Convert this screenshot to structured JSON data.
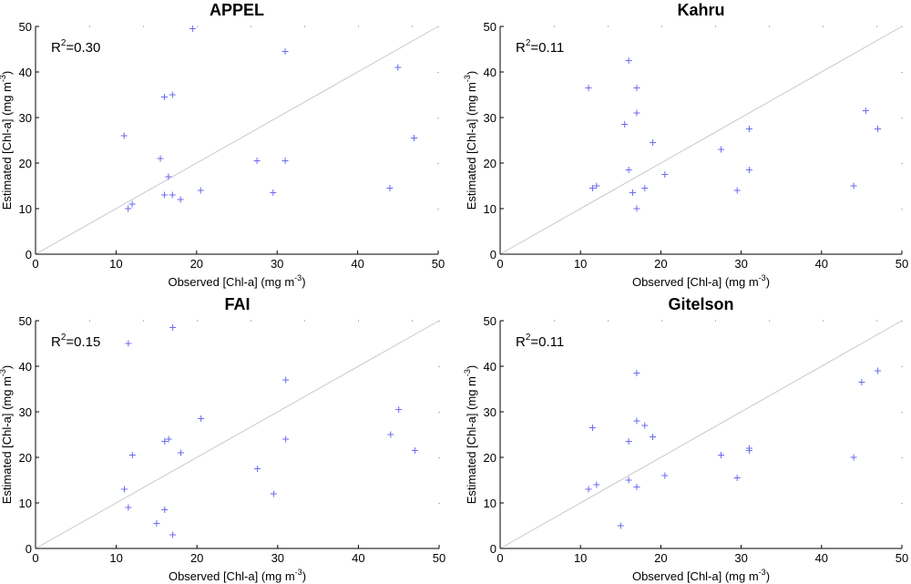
{
  "colors": {
    "axis": "#000000",
    "diagonal": "#c8c8d2",
    "marker": "#6a6af0",
    "dotted_tick": "#777777"
  },
  "chart_data": [
    {
      "type": "scatter",
      "title": "APPEL",
      "r2_prefix": "R",
      "r2_sup": "2",
      "r2_value": "=0.30",
      "xlabel": "Observed [Chl-a] (mg m",
      "ylabel": "Estimated [Chl-a] (mg m",
      "unit_sup": "-3",
      "unit_close": ")",
      "xlim": [
        0,
        50
      ],
      "ylim": [
        0,
        50
      ],
      "xticks": [
        "0",
        "10",
        "20",
        "30",
        "40",
        "50"
      ],
      "yticks": [
        "0",
        "10",
        "20",
        "30",
        "40",
        "50"
      ],
      "reference_line": "1:1",
      "points": [
        [
          11,
          26
        ],
        [
          11.5,
          10
        ],
        [
          12,
          11
        ],
        [
          15.5,
          21
        ],
        [
          16,
          34.5
        ],
        [
          16.5,
          17
        ],
        [
          17,
          35
        ],
        [
          16,
          13
        ],
        [
          17,
          13
        ],
        [
          18,
          12
        ],
        [
          19.5,
          49.5
        ],
        [
          20.5,
          14
        ],
        [
          27.5,
          20.5
        ],
        [
          29.5,
          13.5
        ],
        [
          31,
          20.5
        ],
        [
          31,
          44.5
        ],
        [
          44,
          14.5
        ],
        [
          45,
          41
        ],
        [
          47,
          25.5
        ]
      ]
    },
    {
      "type": "scatter",
      "title": "Kahru",
      "r2_prefix": "R",
      "r2_sup": "2",
      "r2_value": "=0.11",
      "xlabel": "Observed [Chl-a] (mg m",
      "ylabel": "Estimated [Chl-a] (mg m",
      "unit_sup": "-3",
      "unit_close": ")",
      "xlim": [
        0,
        50
      ],
      "ylim": [
        0,
        50
      ],
      "xticks": [
        "0",
        "10",
        "20",
        "30",
        "40",
        "50"
      ],
      "yticks": [
        "0",
        "10",
        "20",
        "30",
        "40",
        "50"
      ],
      "reference_line": "1:1",
      "points": [
        [
          11,
          36.5
        ],
        [
          11.5,
          14.5
        ],
        [
          12,
          15
        ],
        [
          15.5,
          28.5
        ],
        [
          16,
          18.5
        ],
        [
          16,
          42.5
        ],
        [
          16.5,
          13.5
        ],
        [
          17,
          36.5
        ],
        [
          17,
          31
        ],
        [
          17,
          10
        ],
        [
          18,
          14.5
        ],
        [
          19,
          24.5
        ],
        [
          20.5,
          17.5
        ],
        [
          27.5,
          23
        ],
        [
          29.5,
          14
        ],
        [
          31,
          27.5
        ],
        [
          31,
          18.5
        ],
        [
          44,
          15
        ],
        [
          45.5,
          31.5
        ],
        [
          47,
          27.5
        ]
      ]
    },
    {
      "type": "scatter",
      "title": "FAI",
      "r2_prefix": "R",
      "r2_sup": "2",
      "r2_value": "=0.15",
      "xlabel": "Observed [Chl-a] (mg m",
      "ylabel": "Estimated [Chl-a] (mg m",
      "unit_sup": "-3",
      "unit_close": ")",
      "xlim": [
        0,
        50
      ],
      "ylim": [
        0,
        50
      ],
      "xticks": [
        "0",
        "10",
        "20",
        "30",
        "40",
        "50"
      ],
      "yticks": [
        "0",
        "10",
        "20",
        "30",
        "40",
        "50"
      ],
      "reference_line": "1:1",
      "points": [
        [
          11,
          13
        ],
        [
          11.5,
          45
        ],
        [
          11.5,
          9
        ],
        [
          12,
          20.5
        ],
        [
          15,
          5.5
        ],
        [
          16,
          8.5
        ],
        [
          16,
          23.5
        ],
        [
          16.5,
          24
        ],
        [
          17,
          3
        ],
        [
          17,
          48.5
        ],
        [
          18,
          21
        ],
        [
          20.5,
          28.5
        ],
        [
          27.5,
          17.5
        ],
        [
          29.5,
          12
        ],
        [
          31,
          24
        ],
        [
          31,
          37
        ],
        [
          44,
          25
        ],
        [
          45,
          30.5
        ],
        [
          47,
          21.5
        ]
      ]
    },
    {
      "type": "scatter",
      "title": "Gitelson",
      "r2_prefix": "R",
      "r2_sup": "2",
      "r2_value": "=0.11",
      "xlabel": "Observed [Chl-a] (mg m",
      "ylabel": "Estimated [Chl-a] (mg m",
      "unit_sup": "-3",
      "unit_close": ")",
      "xlim": [
        0,
        50
      ],
      "ylim": [
        0,
        50
      ],
      "xticks": [
        "0",
        "10",
        "20",
        "30",
        "40",
        "50"
      ],
      "yticks": [
        "0",
        "10",
        "20",
        "30",
        "40",
        "50"
      ],
      "reference_line": "1:1",
      "points": [
        [
          11,
          13
        ],
        [
          11.5,
          26.5
        ],
        [
          12,
          14
        ],
        [
          15,
          5
        ],
        [
          16,
          15
        ],
        [
          16,
          23.5
        ],
        [
          17,
          38.5
        ],
        [
          17,
          28
        ],
        [
          17,
          13.5
        ],
        [
          18,
          27
        ],
        [
          19,
          24.5
        ],
        [
          20.5,
          16
        ],
        [
          27.5,
          20.5
        ],
        [
          29.5,
          15.5
        ],
        [
          31,
          22
        ],
        [
          31,
          21.5
        ],
        [
          44,
          20
        ],
        [
          45,
          36.5
        ],
        [
          47,
          39
        ]
      ]
    }
  ]
}
